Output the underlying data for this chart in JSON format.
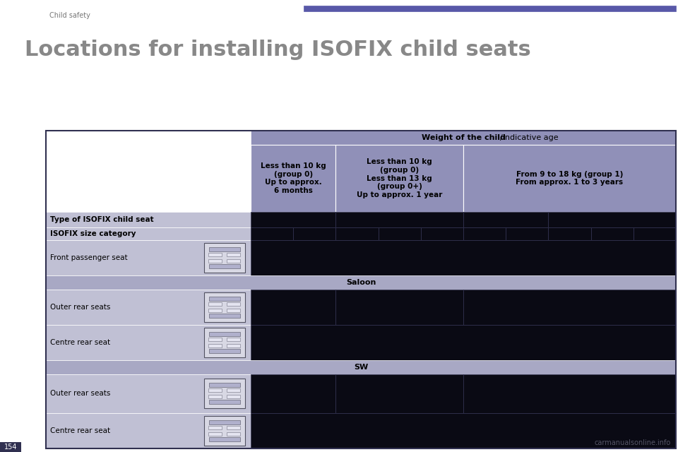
{
  "title": "Locations for installing ISOFIX child seats",
  "subtitle": "Child safety",
  "page_bg": "#ffffff",
  "header_bg": "#9090b8",
  "header_text_color": "#000000",
  "row_label_bg": "#c0c0d4",
  "section_bg": "#a8a8c4",
  "cell_bg_dark": "#0a0a14",
  "border_color": "#303050",
  "deco_bar_color": "#5858a8",
  "title_color": "#888888",
  "subtitle_color": "#777777",
  "watermark_color": "#555555",
  "page_num_color": "#ffffff",
  "col_header_bold": "Weight of the child",
  "col_header_normal": "/indicative age",
  "col_group_labels": [
    "Less than 10 kg\n(group 0)\nUp to approx.\n6 months",
    "Less than 10 kg\n(group 0)\nLess than 13 kg\n(group 0+)\nUp to approx. 1 year",
    "From 9 to 18 kg (group 1)\nFrom approx. 1 to 3 years"
  ],
  "col_group_spans": [
    2,
    3,
    5
  ],
  "type_row_merges": [
    2,
    3,
    2,
    3
  ],
  "row_labels": [
    "Type of ISOFIX child seat",
    "ISOFIX size category",
    "Front passenger seat",
    "Saloon",
    "Outer rear seats",
    "Centre rear seat",
    "SW",
    "Outer rear seats",
    "Centre rear seat"
  ]
}
